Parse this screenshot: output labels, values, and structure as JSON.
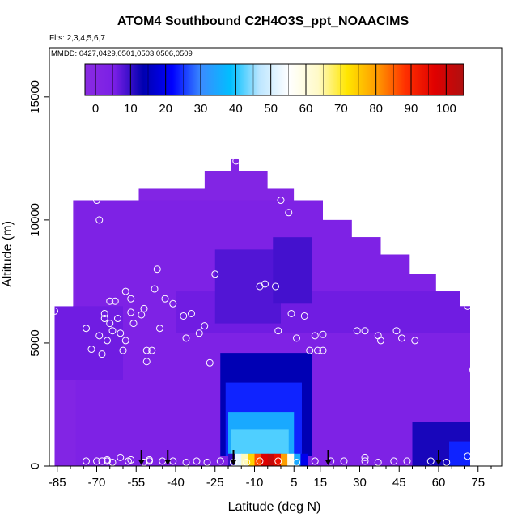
{
  "chart_data": {
    "type": "heatmap",
    "title": "ATOM4 Southbound C2H4O3S_ppt_NOAACIMS",
    "flights_note": "Flts: 2,3,4,5,6,7",
    "dates_note": "MMDD: 0427,0429,0501,0503,0506,0509",
    "xlabel": "Latitude (deg N)",
    "ylabel": "Altitude (m)",
    "xlim": [
      -88,
      84
    ],
    "ylim": [
      0,
      17000
    ],
    "x_ticks": [
      -85,
      -70,
      -55,
      -40,
      -25,
      -10,
      5,
      15,
      30,
      45,
      60,
      75
    ],
    "x_minor_ticks": [
      -80,
      -75,
      -65,
      -60,
      -50,
      -45,
      -35,
      -30,
      -20,
      -15,
      -5,
      0,
      10,
      20,
      25,
      35,
      40,
      50,
      55,
      65,
      70,
      80
    ],
    "y_ticks": [
      0,
      5000,
      10000,
      15000
    ],
    "colorbar": {
      "ticks": [
        0,
        10,
        20,
        30,
        40,
        50,
        60,
        70,
        80,
        90,
        100
      ],
      "range": [
        -3,
        105
      ],
      "stops": [
        "#8a2be2",
        "#7a1fe6",
        "#0000b0",
        "#0000ff",
        "#3a8cff",
        "#00bfff",
        "#bde6ff",
        "#ffffff",
        "#fffac8",
        "#ffe600",
        "#ff9d00",
        "#ff3000",
        "#e00000",
        "#b01010"
      ]
    },
    "envelope": [
      [
        -86,
        0
      ],
      [
        -86,
        6500
      ],
      [
        -79,
        6500
      ],
      [
        -79,
        10800
      ],
      [
        -54,
        10800
      ],
      [
        -54,
        11300
      ],
      [
        -29,
        11300
      ],
      [
        -29,
        12000
      ],
      [
        -19,
        12000
      ],
      [
        -19,
        12500
      ],
      [
        -16,
        12500
      ],
      [
        -16,
        12000
      ],
      [
        -5,
        12000
      ],
      [
        -5,
        11300
      ],
      [
        5,
        11300
      ],
      [
        5,
        10800
      ],
      [
        16,
        10800
      ],
      [
        16,
        10000
      ],
      [
        27,
        10000
      ],
      [
        27,
        9300
      ],
      [
        38,
        9300
      ],
      [
        38,
        8600
      ],
      [
        49,
        8600
      ],
      [
        49,
        7800
      ],
      [
        59,
        7800
      ],
      [
        59,
        7100
      ],
      [
        68,
        7100
      ],
      [
        68,
        6500
      ],
      [
        72,
        6500
      ],
      [
        72,
        0
      ]
    ],
    "field_patches": [
      {
        "lat": [
          -78,
          72
        ],
        "alt": [
          0,
          10800
        ],
        "value": 3
      },
      {
        "lat": [
          -40,
          72
        ],
        "alt": [
          5400,
          7100
        ],
        "value": 6
      },
      {
        "lat": [
          -86,
          -60
        ],
        "alt": [
          3500,
          6500
        ],
        "value": 6
      },
      {
        "lat": [
          -25,
          0
        ],
        "alt": [
          5800,
          8800
        ],
        "value": 8
      },
      {
        "lat": [
          -3,
          12
        ],
        "alt": [
          6600,
          9300
        ],
        "value": 9
      },
      {
        "lat": [
          -23,
          12
        ],
        "alt": [
          400,
          4600
        ],
        "value": 14
      },
      {
        "lat": [
          -21,
          8
        ],
        "alt": [
          400,
          3400
        ],
        "value": 24
      },
      {
        "lat": [
          -20,
          5
        ],
        "alt": [
          400,
          2200
        ],
        "value": 35
      },
      {
        "lat": [
          -19,
          3
        ],
        "alt": [
          500,
          1500
        ],
        "value": 42
      },
      {
        "lat": [
          50,
          72
        ],
        "alt": [
          0,
          1800
        ],
        "value": 12
      },
      {
        "lat": [
          64,
          72
        ],
        "alt": [
          0,
          1000
        ],
        "value": 24
      },
      {
        "lat": [
          -20,
          10
        ],
        "alt": [
          0,
          500
        ],
        "gradient": [
          10,
          52,
          64,
          74,
          86,
          97,
          101,
          94,
          80,
          58,
          35,
          20
        ]
      }
    ],
    "sample_points": [
      [
        -86,
        6300
      ],
      [
        -74,
        5600
      ],
      [
        -72,
        4750
      ],
      [
        -69,
        5300
      ],
      [
        -68,
        4550
      ],
      [
        -67,
        6000
      ],
      [
        -67,
        6200
      ],
      [
        -66,
        5100
      ],
      [
        -65,
        6700
      ],
      [
        -65,
        5800
      ],
      [
        -64,
        5500
      ],
      [
        -63,
        6700
      ],
      [
        -62,
        6000
      ],
      [
        -61,
        5400
      ],
      [
        -60,
        4700
      ],
      [
        -59,
        7100
      ],
      [
        -59,
        5100
      ],
      [
        -57,
        6250
      ],
      [
        -57,
        6800
      ],
      [
        -56,
        5800
      ],
      [
        -53,
        6150
      ],
      [
        -52,
        6400
      ],
      [
        -51,
        4700
      ],
      [
        -51,
        4250
      ],
      [
        -49,
        4700
      ],
      [
        -48,
        7200
      ],
      [
        -47,
        8000
      ],
      [
        -46,
        5600
      ],
      [
        -44,
        6800
      ],
      [
        -41,
        6600
      ],
      [
        -37,
        6100
      ],
      [
        -36,
        5200
      ],
      [
        -34,
        6200
      ],
      [
        -31,
        5400
      ],
      [
        -29,
        5700
      ],
      [
        -27,
        4200
      ],
      [
        -25,
        7800
      ],
      [
        -17,
        12400
      ],
      [
        -8,
        7300
      ],
      [
        -6,
        7400
      ],
      [
        -2,
        7300
      ],
      [
        -1,
        5500
      ],
      [
        0,
        10800
      ],
      [
        3,
        10300
      ],
      [
        4,
        6200
      ],
      [
        6,
        5200
      ],
      [
        9,
        6100
      ],
      [
        11,
        4700
      ],
      [
        13,
        5300
      ],
      [
        14,
        4700
      ],
      [
        16,
        4700
      ],
      [
        16,
        5350
      ],
      [
        29,
        5500
      ],
      [
        32,
        5500
      ],
      [
        37,
        5300
      ],
      [
        38,
        5100
      ],
      [
        44,
        5500
      ],
      [
        46,
        5200
      ],
      [
        51,
        5100
      ],
      [
        71,
        6500
      ],
      [
        73,
        3900
      ],
      [
        -74,
        200
      ],
      [
        -70,
        200
      ],
      [
        -68,
        200
      ],
      [
        -66,
        200
      ],
      [
        -64,
        150
      ],
      [
        -61,
        350
      ],
      [
        -58,
        200
      ],
      [
        -52,
        150
      ],
      [
        -50,
        200
      ],
      [
        -45,
        200
      ],
      [
        -41,
        200
      ],
      [
        -36,
        150
      ],
      [
        -32,
        200
      ],
      [
        -28,
        150
      ],
      [
        -23,
        200
      ],
      [
        -18,
        150
      ],
      [
        -13,
        150
      ],
      [
        -8,
        200
      ],
      [
        -1,
        200
      ],
      [
        6,
        150
      ],
      [
        13,
        200
      ],
      [
        19,
        200
      ],
      [
        24,
        200
      ],
      [
        32,
        200
      ],
      [
        37,
        150
      ],
      [
        43,
        200
      ],
      [
        48,
        200
      ],
      [
        57,
        200
      ],
      [
        63,
        150
      ],
      [
        71,
        400
      ],
      [
        -70,
        10800
      ],
      [
        -69,
        10000
      ],
      [
        26,
        10200
      ],
      [
        31,
        10800
      ],
      [
        -66,
        250
      ],
      [
        -57,
        250
      ],
      [
        -50,
        250
      ],
      [
        32,
        350
      ]
    ],
    "flight_arrows_lat": [
      -53,
      -43,
      -18,
      18,
      60
    ]
  }
}
